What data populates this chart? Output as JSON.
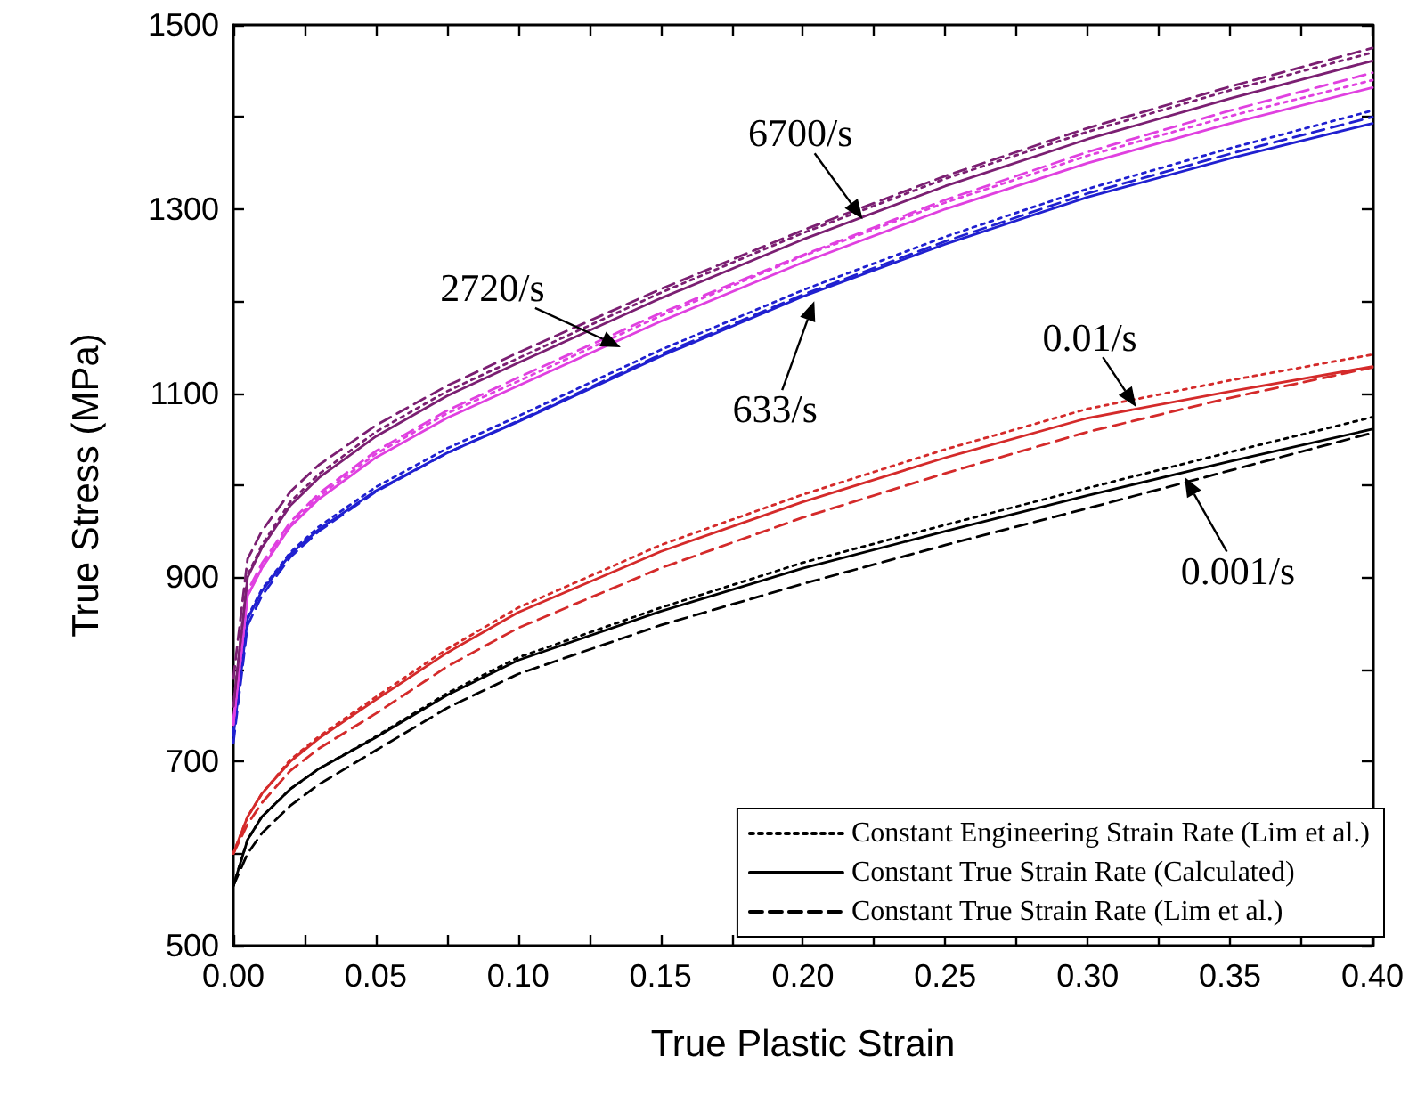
{
  "chart_data": {
    "type": "line",
    "xlabel": "True Plastic Strain",
    "ylabel": "True Stress (MPa)",
    "x": [
      0,
      0.005,
      0.01,
      0.02,
      0.03,
      0.05,
      0.075,
      0.1,
      0.15,
      0.2,
      0.25,
      0.3,
      0.35,
      0.4
    ],
    "xlim": [
      0,
      0.4
    ],
    "xticks": [
      {
        "value": 0,
        "label": "0.00"
      },
      {
        "value": 0.025,
        "label": null
      },
      {
        "value": 0.05,
        "label": "0.05"
      },
      {
        "value": 0.075,
        "label": null
      },
      {
        "value": 0.1,
        "label": "0.10"
      },
      {
        "value": 0.125,
        "label": null
      },
      {
        "value": 0.15,
        "label": "0.15"
      },
      {
        "value": 0.175,
        "label": null
      },
      {
        "value": 0.2,
        "label": "0.20"
      },
      {
        "value": 0.225,
        "label": null
      },
      {
        "value": 0.25,
        "label": "0.25"
      },
      {
        "value": 0.275,
        "label": null
      },
      {
        "value": 0.3,
        "label": "0.30"
      },
      {
        "value": 0.325,
        "label": null
      },
      {
        "value": 0.35,
        "label": "0.35"
      },
      {
        "value": 0.375,
        "label": null
      },
      {
        "value": 0.4,
        "label": "0.40"
      }
    ],
    "ylim": [
      500,
      1500
    ],
    "yticks": [
      500,
      {
        "value": 600,
        "label": null
      },
      700,
      {
        "value": 800,
        "label": null
      },
      900,
      {
        "value": 1000,
        "label": null
      },
      1100,
      {
        "value": 1200,
        "label": null
      },
      1300,
      {
        "value": 1400,
        "label": null
      },
      1500
    ],
    "grid": false,
    "legend": "bottom right",
    "marker": "none",
    "series": [
      {
        "name": "Constant Engineering Strain Rate (Lim et al.)",
        "color": "#000000",
        "line_style": "dotted",
        "values": [
          565,
          615,
          640,
          670,
          692,
          727,
          774,
          813,
          867,
          916,
          957,
          997,
          1036,
          1074
        ]
      },
      {
        "name": "Constant True Strain Rate (Calculated)",
        "color": "#000000",
        "line_style": "solid",
        "values": [
          565,
          615,
          640,
          670,
          692,
          726,
          772,
          810,
          863,
          910,
          950,
          989,
          1026,
          1061
        ]
      },
      {
        "name": "Constant True Strain Rate (Lim et al.)",
        "color": "#000000",
        "line_style": "dashed",
        "values": [
          565,
          600,
          622,
          652,
          675,
          712,
          758,
          795,
          848,
          893,
          935,
          975,
          1016,
          1057
        ]
      },
      {
        "color": "#d42a2a",
        "line_style": "dotted",
        "values": [
          600,
          640,
          665,
          702,
          727,
          770,
          822,
          867,
          935,
          990,
          1039,
          1083,
          1114,
          1142
        ]
      },
      {
        "color": "#d42a2a",
        "line_style": "solid",
        "values": [
          600,
          640,
          665,
          700,
          725,
          767,
          818,
          862,
          928,
          982,
          1030,
          1073,
          1102,
          1129
        ]
      },
      {
        "color": "#d42a2a",
        "line_style": "dashed",
        "values": [
          600,
          632,
          655,
          690,
          714,
          752,
          803,
          845,
          910,
          965,
          1013,
          1058,
          1095,
          1128
        ]
      },
      {
        "color": "#2020d0",
        "line_style": "dotted",
        "values": [
          732,
          857,
          887,
          927,
          955,
          998,
          1040,
          1075,
          1147,
          1212,
          1270,
          1322,
          1366,
          1407
        ]
      },
      {
        "color": "#2020d0",
        "line_style": "solid",
        "values": [
          728,
          855,
          885,
          925,
          952,
          994,
          1035,
          1069,
          1140,
          1205,
          1262,
          1313,
          1355,
          1393
        ]
      },
      {
        "color": "#2020d0",
        "line_style": "dashed",
        "values": [
          720,
          848,
          880,
          922,
          950,
          993,
          1035,
          1070,
          1142,
          1207,
          1265,
          1317,
          1360,
          1400
        ]
      },
      {
        "color": "#e040e0",
        "line_style": "dotted",
        "values": [
          740,
          880,
          911,
          957,
          988,
          1034,
          1078,
          1113,
          1184,
          1249,
          1307,
          1358,
          1401,
          1440
        ]
      },
      {
        "color": "#e040e0",
        "line_style": "solid",
        "values": [
          740,
          880,
          910,
          955,
          985,
          1030,
          1073,
          1108,
          1178,
          1242,
          1300,
          1350,
          1393,
          1432
        ]
      },
      {
        "color": "#e040e0",
        "line_style": "dashed",
        "values": [
          745,
          885,
          915,
          960,
          991,
          1037,
          1081,
          1117,
          1187,
          1250,
          1310,
          1362,
          1407,
          1448
        ]
      },
      {
        "color": "#7b1f72",
        "line_style": "dotted",
        "values": [
          760,
          902,
          935,
          982,
          1012,
          1058,
          1102,
          1138,
          1209,
          1274,
          1333,
          1384,
          1429,
          1470
        ]
      },
      {
        "color": "#7b1f72",
        "line_style": "solid",
        "values": [
          760,
          900,
          932,
          978,
          1008,
          1053,
          1097,
          1133,
          1203,
          1267,
          1325,
          1376,
          1420,
          1461
        ]
      },
      {
        "color": "#7b1f72",
        "line_style": "dashed",
        "values": [
          790,
          920,
          950,
          993,
          1022,
          1065,
          1108,
          1144,
          1213,
          1277,
          1336,
          1388,
          1433,
          1475
        ]
      }
    ],
    "annotations": [
      {
        "text": "6700/s",
        "x": 0.221,
        "y": 1289
      },
      {
        "text": "2720/s",
        "x": 0.136,
        "y": 1150
      },
      {
        "text": "633/s",
        "x": 0.204,
        "y": 1200
      },
      {
        "text": "0.01/s",
        "x": 0.317,
        "y": 1085
      },
      {
        "text": "0.001/s",
        "x": 0.334,
        "y": 1009
      }
    ]
  }
}
